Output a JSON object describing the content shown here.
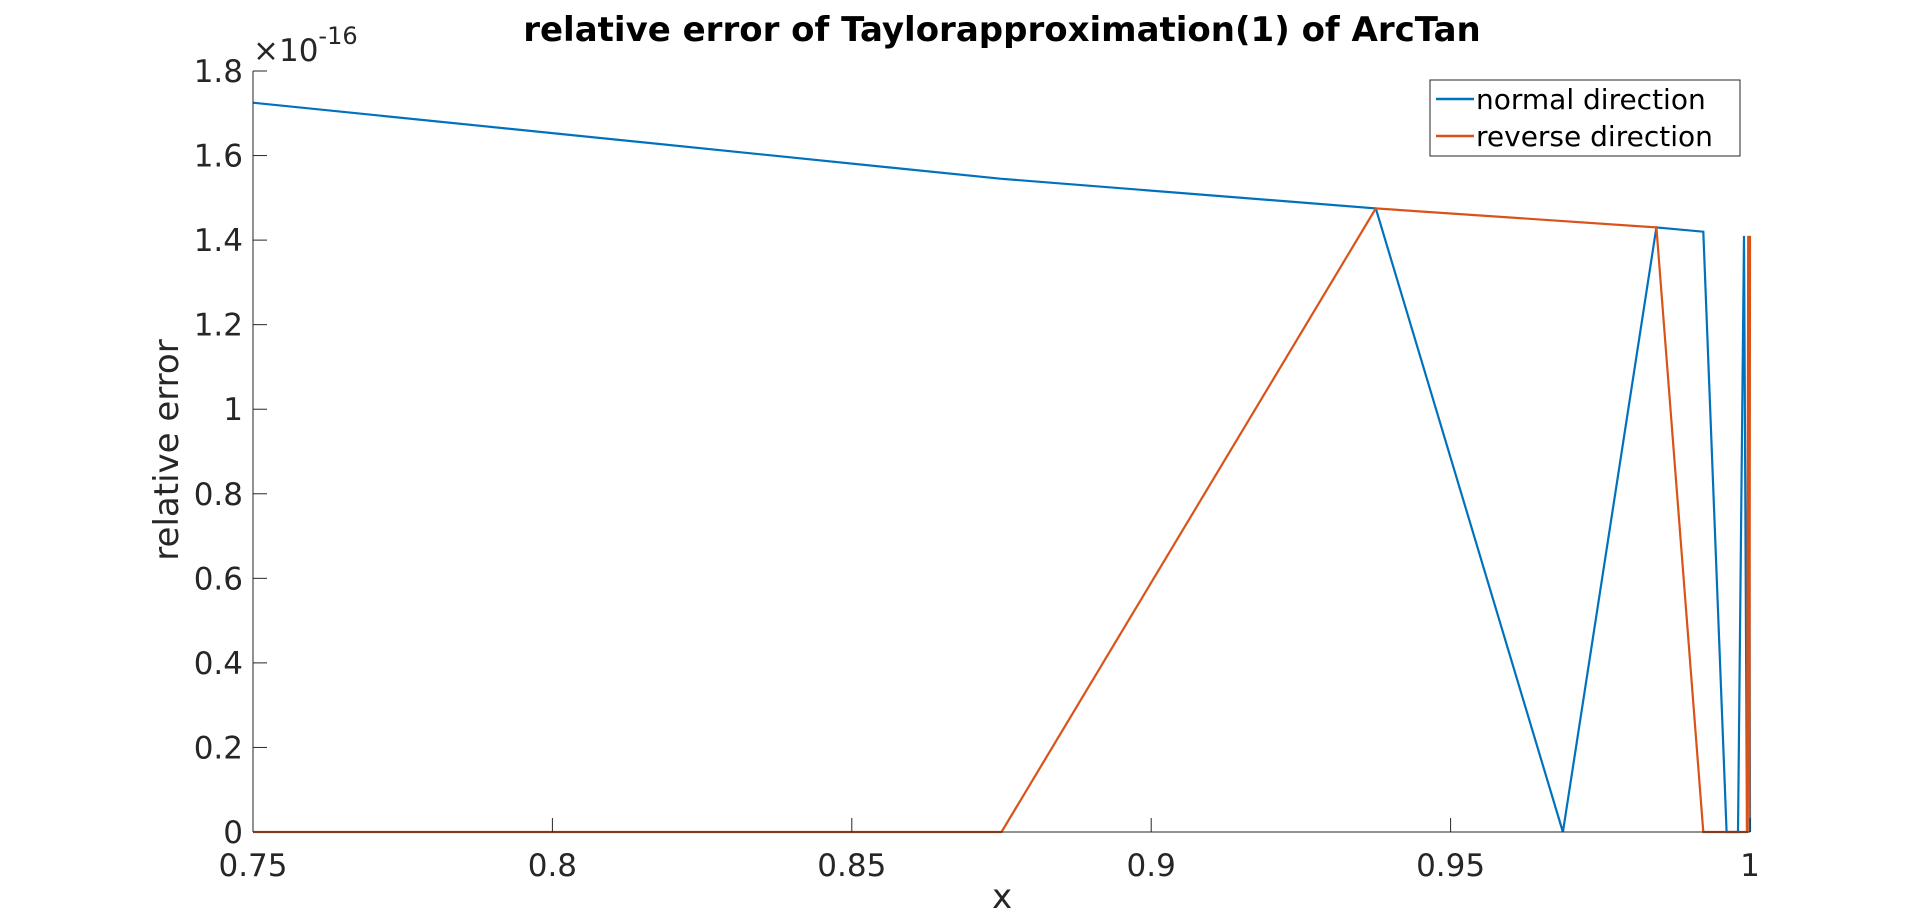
{
  "chart_data": {
    "type": "line",
    "title": "relative error of Taylorapproximation(1) of ArcTan",
    "xlabel": "x",
    "ylabel": "relative error",
    "xlim": [
      0.75,
      1.0
    ],
    "ylim": [
      0,
      1.8
    ],
    "y_exponent_label": {
      "base": "×10",
      "exponent": "-16"
    },
    "xticks": [
      0.75,
      0.8,
      0.85,
      0.9,
      0.95,
      1.0
    ],
    "xtick_labels": [
      "0.75",
      "0.8",
      "0.85",
      "0.9",
      "0.95",
      "1"
    ],
    "yticks": [
      0,
      0.2,
      0.4,
      0.6,
      0.8,
      1.0,
      1.2,
      1.4,
      1.6,
      1.8
    ],
    "ytick_labels": [
      "0",
      "0.2",
      "0.4",
      "0.6",
      "0.8",
      "1",
      "1.2",
      "1.4",
      "1.6",
      "1.8"
    ],
    "grid": false,
    "legend_position": "top-right",
    "series": [
      {
        "name": "normal direction",
        "color": "#0072bd",
        "points": [
          [
            0.75,
            1.725
          ],
          [
            0.875,
            1.545
          ],
          [
            0.9375,
            1.475
          ],
          [
            0.96875,
            0.0
          ],
          [
            0.984375,
            1.43
          ],
          [
            0.9922,
            1.42
          ],
          [
            0.9961,
            0.0
          ],
          [
            0.998,
            0.0
          ],
          [
            0.999,
            1.41
          ],
          [
            0.9995,
            0.0
          ],
          [
            0.9998,
            1.41
          ],
          [
            1.0,
            0.0
          ]
        ]
      },
      {
        "name": "reverse direction",
        "color": "#d95319",
        "points": [
          [
            0.75,
            0.0
          ],
          [
            0.875,
            0.0
          ],
          [
            0.9375,
            1.475
          ],
          [
            0.984375,
            1.43
          ],
          [
            0.9922,
            0.0
          ],
          [
            0.9995,
            0.0
          ],
          [
            0.9997,
            1.41
          ],
          [
            0.9999,
            0.0
          ],
          [
            1.0,
            1.41
          ]
        ]
      }
    ]
  }
}
